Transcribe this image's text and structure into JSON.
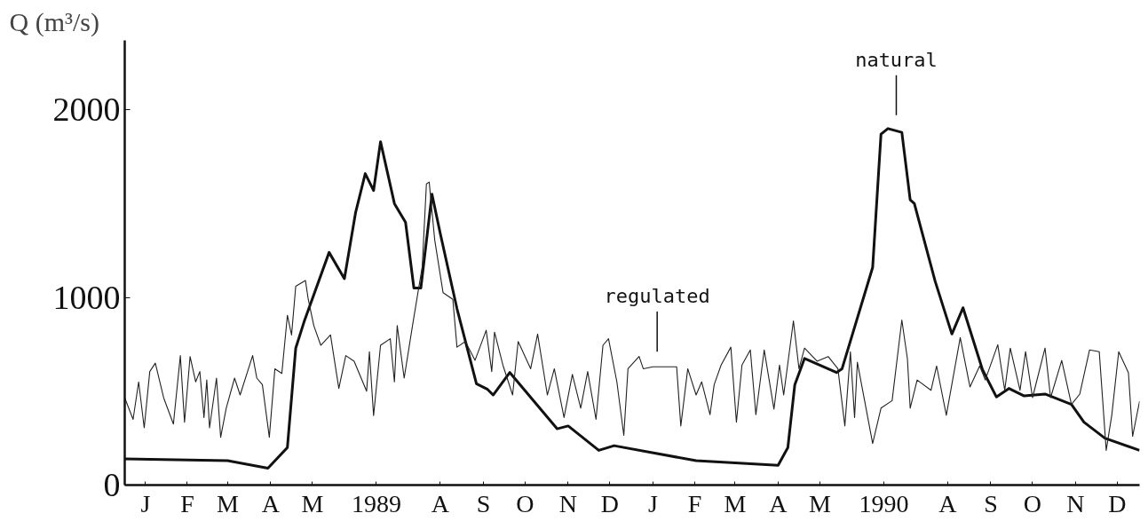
{
  "chart_data": {
    "type": "line",
    "ylabel": "Q (m³/s)",
    "xlim": [
      "1989-01-01",
      "1991-01-01"
    ],
    "ylim": [
      0,
      2370
    ],
    "xticks": [
      {
        "value": "1989-01-16",
        "label": "J"
      },
      {
        "value": "1989-02-15",
        "label": "F"
      },
      {
        "value": "1989-03-16",
        "label": "M"
      },
      {
        "value": "1989-04-16",
        "label": "A"
      },
      {
        "value": "1989-05-16",
        "label": "M"
      },
      {
        "value": "1989-07-01",
        "label": "1989"
      },
      {
        "value": "1989-08-16",
        "label": "A"
      },
      {
        "value": "1989-09-16",
        "label": "S"
      },
      {
        "value": "1989-10-16",
        "label": "O"
      },
      {
        "value": "1989-11-16",
        "label": "N"
      },
      {
        "value": "1989-12-16",
        "label": "D"
      },
      {
        "value": "1990-01-16",
        "label": "J"
      },
      {
        "value": "1990-02-15",
        "label": "F"
      },
      {
        "value": "1990-03-16",
        "label": "M"
      },
      {
        "value": "1990-04-16",
        "label": "A"
      },
      {
        "value": "1990-05-16",
        "label": "M"
      },
      {
        "value": "1990-07-01",
        "label": "1990"
      },
      {
        "value": "1990-08-16",
        "label": "A"
      },
      {
        "value": "1990-09-16",
        "label": "S"
      },
      {
        "value": "1990-10-16",
        "label": "O"
      },
      {
        "value": "1990-11-16",
        "label": "N"
      },
      {
        "value": "1990-12-16",
        "label": "D"
      }
    ],
    "yticks": [
      0,
      1000,
      2000
    ],
    "grid": false,
    "marker": "none",
    "annotations": [
      {
        "text": "natural",
        "x": "1990-07-10",
        "y": 1900
      },
      {
        "text": "regulated",
        "x": "1990-01-19",
        "y": 640
      }
    ],
    "series": [
      {
        "color": "#111111",
        "x": [
          "1989-01-01",
          "1989-03-16",
          "1989-04-14",
          "1989-04-28",
          "1989-05-04",
          "1989-05-10",
          "1989-05-28",
          "1989-06-08",
          "1989-06-16",
          "1989-06-23",
          "1989-06-29",
          "1989-07-04",
          "1989-07-14",
          "1989-07-22",
          "1989-07-28",
          "1989-08-02",
          "1989-08-10",
          "1989-08-16",
          "1989-08-28",
          "1989-09-11",
          "1989-09-19",
          "1989-09-23",
          "1989-10-05",
          "1989-11-08",
          "1989-11-16",
          "1989-12-08",
          "1989-12-19",
          "1990-02-16",
          "1990-04-16",
          "1990-04-23",
          "1990-04-28",
          "1990-05-05",
          "1990-05-28",
          "1990-06-01",
          "1990-06-23",
          "1990-06-29",
          "1990-07-04",
          "1990-07-14",
          "1990-07-20",
          "1990-07-23",
          "1990-08-07",
          "1990-08-19",
          "1990-08-27",
          "1990-09-10",
          "1990-09-20",
          "1990-09-29",
          "1990-10-10",
          "1990-10-25",
          "1990-11-13",
          "1990-11-22",
          "1990-12-07",
          "1991-01-01"
        ],
        "values": [
          140,
          130,
          90,
          200,
          730,
          870,
          1240,
          1100,
          1450,
          1660,
          1570,
          1830,
          1500,
          1400,
          1050,
          1050,
          1550,
          1340,
          940,
          540,
          510,
          480,
          600,
          300,
          315,
          185,
          210,
          130,
          105,
          200,
          535,
          675,
          600,
          620,
          1160,
          1870,
          1900,
          1880,
          1520,
          1500,
          1085,
          805,
          945,
          615,
          470,
          515,
          475,
          485,
          430,
          335,
          250,
          185
        ]
      },
      {
        "color": "#222222",
        "x": [
          "1989-01-01",
          "1989-01-07",
          "1989-01-11",
          "1989-01-15",
          "1989-01-19",
          "1989-01-23",
          "1989-01-29",
          "1989-02-05",
          "1989-02-10",
          "1989-02-13",
          "1989-02-17",
          "1989-02-21",
          "1989-02-24",
          "1989-02-27",
          "1989-03-01",
          "1989-03-03",
          "1989-03-08",
          "1989-03-11",
          "1989-03-15",
          "1989-03-21",
          "1989-03-25",
          "1989-04-03",
          "1989-04-06",
          "1989-04-10",
          "1989-04-15",
          "1989-04-19",
          "1989-04-24",
          "1989-04-28",
          "1989-05-01",
          "1989-05-04",
          "1989-05-11",
          "1989-05-13",
          "1989-05-17",
          "1989-05-22",
          "1989-05-29",
          "1989-06-04",
          "1989-06-09",
          "1989-06-15",
          "1989-06-24",
          "1989-06-26",
          "1989-06-29",
          "1989-07-04",
          "1989-07-11",
          "1989-07-14",
          "1989-07-16",
          "1989-07-21",
          "1989-07-27",
          "1989-08-03",
          "1989-08-06",
          "1989-08-08",
          "1989-08-12",
          "1989-08-18",
          "1989-08-25",
          "1989-08-28",
          "1989-09-03",
          "1989-09-10",
          "1989-09-18",
          "1989-09-22",
          "1989-09-24",
          "1989-09-30",
          "1989-10-07",
          "1989-10-11",
          "1989-10-20",
          "1989-10-25",
          "1989-11-01",
          "1989-11-06",
          "1989-11-13",
          "1989-11-19",
          "1989-11-25",
          "1989-11-30",
          "1989-12-06",
          "1989-12-11",
          "1989-12-15",
          "1989-12-21",
          "1989-12-26",
          "1989-12-29",
          "1990-01-06",
          "1990-01-09",
          "1990-01-16",
          "1990-02-02",
          "1990-02-05",
          "1990-02-10",
          "1990-02-16",
          "1990-02-20",
          "1990-02-26",
          "1990-03-01",
          "1990-03-06",
          "1990-03-13",
          "1990-03-17",
          "1990-03-21",
          "1990-03-27",
          "1990-03-31",
          "1990-04-06",
          "1990-04-13",
          "1990-04-17",
          "1990-04-20",
          "1990-04-27",
          "1990-05-01",
          "1990-05-05",
          "1990-05-14",
          "1990-05-22",
          "1990-05-29",
          "1990-06-03",
          "1990-06-07",
          "1990-06-10",
          "1990-06-12",
          "1990-06-23",
          "1990-06-29",
          "1990-07-07",
          "1990-07-14",
          "1990-07-18",
          "1990-07-20",
          "1990-07-25",
          "1990-08-04",
          "1990-08-08",
          "1990-08-15",
          "1990-08-25",
          "1990-09-01",
          "1990-09-08",
          "1990-09-12",
          "1990-09-21",
          "1990-09-26",
          "1990-09-30",
          "1990-10-07",
          "1990-10-11",
          "1990-10-16",
          "1990-10-25",
          "1990-10-29",
          "1990-11-06",
          "1990-11-13",
          "1990-11-19",
          "1990-11-26",
          "1990-12-03",
          "1990-12-08",
          "1990-12-12",
          "1990-12-17",
          "1990-12-24",
          "1990-12-27",
          "1991-01-01"
        ],
        "values": [
          465,
          350,
          550,
          305,
          605,
          650,
          465,
          325,
          690,
          335,
          685,
          550,
          605,
          360,
          560,
          305,
          570,
          255,
          410,
          570,
          480,
          690,
          570,
          535,
          255,
          620,
          595,
          905,
          800,
          1060,
          1090,
          990,
          850,
          745,
          800,
          515,
          690,
          660,
          500,
          710,
          370,
          745,
          780,
          550,
          850,
          570,
          850,
          1165,
          1605,
          1615,
          1305,
          1025,
          990,
          735,
          765,
          665,
          825,
          605,
          815,
          640,
          480,
          765,
          620,
          805,
          480,
          620,
          360,
          590,
          410,
          605,
          350,
          745,
          780,
          550,
          265,
          620,
          685,
          620,
          630,
          630,
          315,
          620,
          480,
          550,
          375,
          535,
          640,
          735,
          335,
          640,
          720,
          375,
          720,
          405,
          640,
          480,
          875,
          620,
          730,
          660,
          685,
          620,
          315,
          710,
          360,
          655,
          222,
          410,
          450,
          880,
          673,
          410,
          560,
          505,
          635,
          372,
          786,
          523,
          635,
          560,
          748,
          505,
          730,
          505,
          711,
          466,
          730,
          466,
          664,
          430,
          485,
          720,
          711,
          185,
          372,
          711,
          598,
          260,
          447
        ]
      }
    ]
  }
}
